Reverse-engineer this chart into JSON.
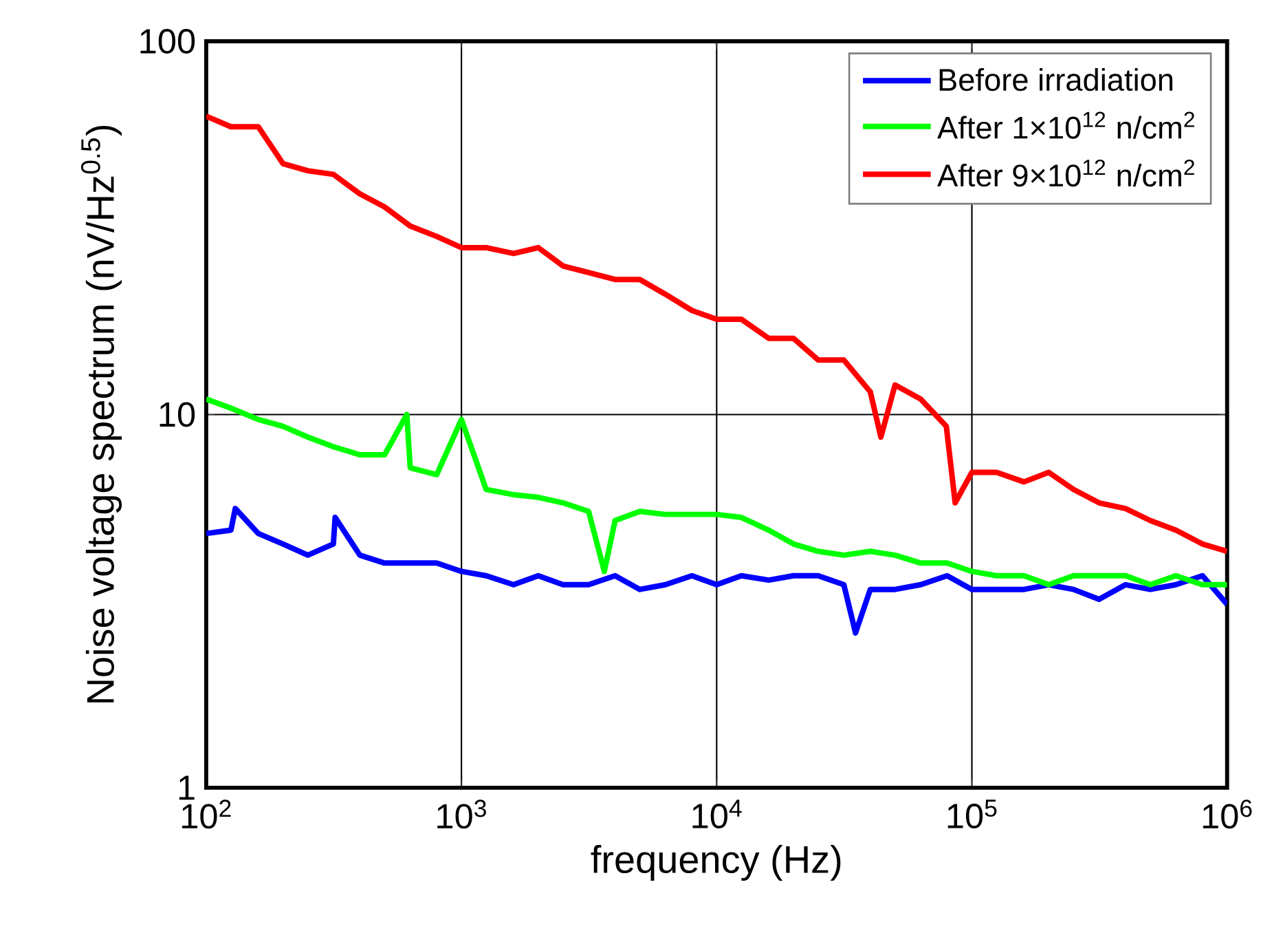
{
  "chart_data": {
    "type": "line",
    "xlabel": "frequency (Hz)",
    "ylabel": "Noise voltage spectrum (nV/Hz$^{0.5}$)",
    "log": "xy",
    "grid": true,
    "legend": "top right",
    "xlim": [
      100,
      1000000
    ],
    "ylim": [
      1,
      100
    ],
    "xticks": [
      {
        "value": 100,
        "label": "10$^{2}$"
      },
      {
        "value": 1000,
        "label": "10$^{3}$"
      },
      {
        "value": 10000,
        "label": "10$^{4}$"
      },
      {
        "value": 100000,
        "label": "10$^{5}$"
      },
      {
        "value": 1000000,
        "label": "10$^{6}$"
      }
    ],
    "yticks": [
      1,
      10,
      100
    ],
    "series": [
      {
        "name": "Before irradiation",
        "color": "#0000ff",
        "x": [
          100,
          125,
          130,
          160,
          200,
          250,
          315,
          320,
          400,
          500,
          630,
          800,
          1000,
          1250,
          1600,
          2000,
          2500,
          3150,
          4000,
          5000,
          6300,
          8000,
          10000,
          12500,
          16000,
          20000,
          25000,
          31500,
          35000,
          40000,
          50000,
          63000,
          80000,
          100000,
          125000,
          160000,
          200000,
          250000,
          315000,
          400000,
          500000,
          630000,
          800000,
          1000000
        ],
        "values": [
          4.8,
          4.9,
          5.6,
          4.8,
          4.5,
          4.2,
          4.5,
          5.3,
          4.2,
          4.0,
          4.0,
          4.0,
          3.8,
          3.7,
          3.5,
          3.7,
          3.5,
          3.5,
          3.7,
          3.4,
          3.5,
          3.7,
          3.5,
          3.7,
          3.6,
          3.7,
          3.7,
          3.5,
          2.6,
          3.4,
          3.4,
          3.5,
          3.7,
          3.4,
          3.4,
          3.4,
          3.5,
          3.4,
          3.2,
          3.5,
          3.4,
          3.5,
          3.7,
          3.1
        ]
      },
      {
        "name": "After 1×10$^{12}$ n/cm$^{2}$",
        "color": "#00ff00",
        "x": [
          100,
          125,
          160,
          200,
          250,
          315,
          400,
          500,
          611,
          630,
          800,
          1000,
          1250,
          1600,
          2000,
          2500,
          3150,
          3630,
          4000,
          5000,
          6300,
          8000,
          10000,
          12500,
          16000,
          20000,
          25000,
          31500,
          40000,
          50000,
          63000,
          80000,
          100000,
          125000,
          160000,
          200000,
          250000,
          315000,
          400000,
          500000,
          630000,
          800000,
          1000000
        ],
        "values": [
          11,
          10.4,
          9.7,
          9.3,
          8.7,
          8.2,
          7.8,
          7.8,
          10,
          7.2,
          6.9,
          9.7,
          6.3,
          6.1,
          6,
          5.8,
          5.5,
          3.8,
          5.2,
          5.5,
          5.4,
          5.4,
          5.4,
          5.3,
          4.9,
          4.5,
          4.3,
          4.2,
          4.3,
          4.2,
          4.0,
          4.0,
          3.8,
          3.7,
          3.7,
          3.5,
          3.7,
          3.7,
          3.7,
          3.5,
          3.7,
          3.5,
          3.5
        ]
      },
      {
        "name": "After 9×10$^{12}$ n/cm$^{2}$",
        "color": "#ff0000",
        "x": [
          100,
          125,
          160,
          200,
          250,
          315,
          400,
          500,
          630,
          800,
          1000,
          1250,
          1600,
          2000,
          2500,
          3150,
          4000,
          5000,
          6300,
          8000,
          10000,
          12500,
          16000,
          20000,
          25000,
          31500,
          40000,
          44000,
          50000,
          63000,
          79400,
          86000,
          100000,
          125000,
          160000,
          200000,
          250000,
          315000,
          400000,
          500000,
          630000,
          800000,
          1000000
        ],
        "values": [
          63,
          59,
          59,
          47,
          45,
          44,
          39,
          36,
          32,
          30,
          28,
          28,
          27,
          28,
          25,
          24,
          23,
          23,
          21,
          19,
          18,
          18,
          16,
          16,
          14,
          14,
          11.5,
          8.7,
          12,
          11,
          9.3,
          5.8,
          7.0,
          7,
          6.6,
          7,
          6.3,
          5.8,
          5.6,
          5.2,
          4.9,
          4.5,
          4.3
        ]
      }
    ]
  }
}
